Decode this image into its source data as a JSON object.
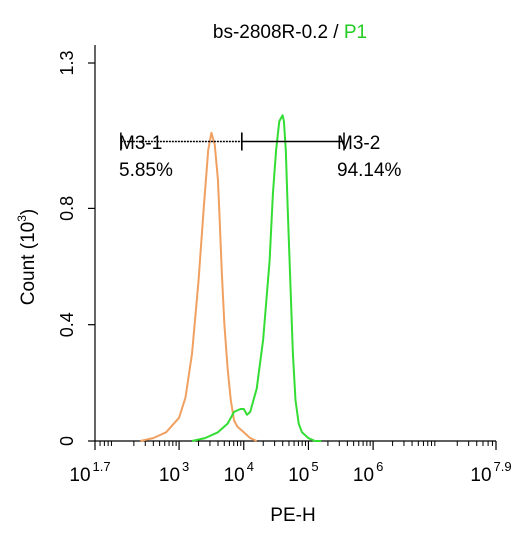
{
  "chart_data": {
    "type": "line",
    "title_main": "bs-2808R-0.2",
    "title_sep": " / ",
    "title_gate": "P1",
    "xlabel": "PE-H",
    "ylabel": "Count (10",
    "ylabel_exp": "3",
    "ylabel_close": ")",
    "x_scale": "log",
    "xlim": [
      1.7,
      7.9
    ],
    "ylim": [
      0,
      1.3
    ],
    "x_ticks": [
      {
        "base": "10",
        "exp": "1.7",
        "value": 1.7
      },
      {
        "base": "10",
        "exp": "3",
        "value": 3
      },
      {
        "base": "10",
        "exp": "4",
        "value": 4
      },
      {
        "base": "10",
        "exp": "5",
        "value": 5
      },
      {
        "base": "10",
        "exp": "6",
        "value": 6
      },
      {
        "base": "10",
        "exp": "7.9",
        "value": 7.9
      }
    ],
    "y_ticks": [
      {
        "label": "0",
        "value": 0
      },
      {
        "label": "0.4",
        "value": 0.4
      },
      {
        "label": "0.8",
        "value": 0.8
      },
      {
        "label": "1.3",
        "value": 1.3
      }
    ],
    "series": [
      {
        "color": "#f0a060",
        "x": [
          2.4,
          2.6,
          2.8,
          3.0,
          3.1,
          3.2,
          3.3,
          3.38,
          3.45,
          3.5,
          3.55,
          3.6,
          3.63,
          3.66,
          3.7,
          3.75,
          3.8,
          3.85,
          3.9,
          3.95,
          4.0,
          4.1,
          4.2
        ],
        "y": [
          0.0,
          0.01,
          0.03,
          0.08,
          0.15,
          0.3,
          0.55,
          0.8,
          1.0,
          1.06,
          1.02,
          0.9,
          0.75,
          0.58,
          0.4,
          0.25,
          0.14,
          0.07,
          0.05,
          0.04,
          0.03,
          0.01,
          0.0
        ]
      },
      {
        "color": "#33dd33",
        "x": [
          3.2,
          3.4,
          3.6,
          3.75,
          3.85,
          3.95,
          4.0,
          4.05,
          4.1,
          4.2,
          4.3,
          4.4,
          4.45,
          4.5,
          4.55,
          4.6,
          4.62,
          4.65,
          4.68,
          4.72,
          4.76,
          4.8,
          4.85,
          4.9,
          5.0,
          5.1,
          5.2
        ],
        "y": [
          0.0,
          0.01,
          0.03,
          0.06,
          0.1,
          0.11,
          0.11,
          0.09,
          0.1,
          0.18,
          0.35,
          0.62,
          0.85,
          1.0,
          1.1,
          1.12,
          1.1,
          1.0,
          0.8,
          0.55,
          0.3,
          0.14,
          0.06,
          0.03,
          0.01,
          0.0,
          0.0
        ]
      }
    ],
    "markers": [
      {
        "name": "M3-1",
        "percent": "5.85%",
        "x_start": 2.1,
        "x_end": 3.97,
        "y": 1.03
      },
      {
        "name": "M3-2",
        "percent": "94.14%",
        "x_start": 3.97,
        "x_end": 5.55,
        "y": 1.03
      }
    ]
  }
}
